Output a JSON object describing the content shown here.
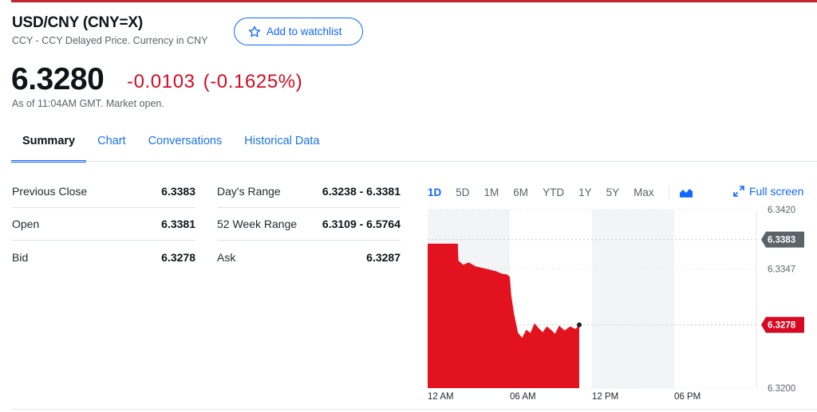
{
  "quote": {
    "title": "USD/CNY (CNY=X)",
    "subtitle": "CCY - CCY Delayed Price. Currency in CNY",
    "watchlist_label": "Add to watchlist",
    "price": "6.3280",
    "change": "-0.0103",
    "change_pct": "(-0.1625%)",
    "as_of": "As of 11:04AM GMT. Market open."
  },
  "tabs": [
    {
      "label": "Summary",
      "active": true
    },
    {
      "label": "Chart",
      "active": false
    },
    {
      "label": "Conversations",
      "active": false
    },
    {
      "label": "Historical Data",
      "active": false
    }
  ],
  "stats_left": [
    {
      "label": "Previous Close",
      "value": "6.3383"
    },
    {
      "label": "Open",
      "value": "6.3381"
    },
    {
      "label": "Bid",
      "value": "6.3278"
    }
  ],
  "stats_right": [
    {
      "label": "Day's Range",
      "value": "6.3238 - 6.3381"
    },
    {
      "label": "52 Week Range",
      "value": "6.3109 - 6.5764"
    },
    {
      "label": "Ask",
      "value": "6.3287"
    }
  ],
  "ranges": [
    {
      "label": "1D",
      "active": true
    },
    {
      "label": "5D",
      "active": false
    },
    {
      "label": "1M",
      "active": false
    },
    {
      "label": "6M",
      "active": false
    },
    {
      "label": "YTD",
      "active": false
    },
    {
      "label": "1Y",
      "active": false
    },
    {
      "label": "5Y",
      "active": false
    },
    {
      "label": "Max",
      "active": false
    }
  ],
  "fullscreen_label": "Full screen",
  "icons": {
    "watchlist": "star-outline-icon",
    "chart_type": "mountain-chart-icon",
    "fullscreen": "expand-arrows-icon"
  },
  "colors": {
    "accent": "#0f69ff",
    "negative": "#d60a22",
    "top_bar": "#c0282d",
    "marker_gray": "#5b636a"
  },
  "chart_data": {
    "type": "area",
    "x_ticks": [
      "12 AM",
      "06 AM",
      "12 PM",
      "06 PM"
    ],
    "y_ticks": [
      "6.3420",
      "6.3347",
      "6.3200"
    ],
    "ylim": [
      6.32,
      6.342
    ],
    "x_range_hours": [
      0,
      24
    ],
    "markers": [
      {
        "label": "6.3383",
        "value": 6.3383,
        "color": "#5b636a"
      },
      {
        "label": "6.3278",
        "value": 6.3278,
        "color": "#d60a22"
      }
    ],
    "series": [
      {
        "x": [
          0,
          0.7,
          1.4,
          2.2,
          2.25,
          2.6,
          3.0,
          3.5,
          4.0,
          4.5,
          5.0,
          5.4,
          5.8,
          6.0,
          6.1,
          6.3,
          6.6,
          6.9,
          7.2,
          7.5,
          7.8,
          8.1,
          8.4,
          8.7,
          9.0,
          9.3,
          9.6,
          10.0,
          10.4,
          10.8,
          11.07
        ],
        "y": [
          6.3378,
          6.3378,
          6.3378,
          6.3378,
          6.3357,
          6.3352,
          6.3355,
          6.335,
          6.3348,
          6.3346,
          6.3344,
          6.3341,
          6.334,
          6.3337,
          6.3315,
          6.3292,
          6.3268,
          6.3262,
          6.3272,
          6.3268,
          6.328,
          6.3274,
          6.3269,
          6.3276,
          6.3272,
          6.3267,
          6.3277,
          6.3271,
          6.3276,
          6.3273,
          6.3278
        ]
      }
    ]
  }
}
